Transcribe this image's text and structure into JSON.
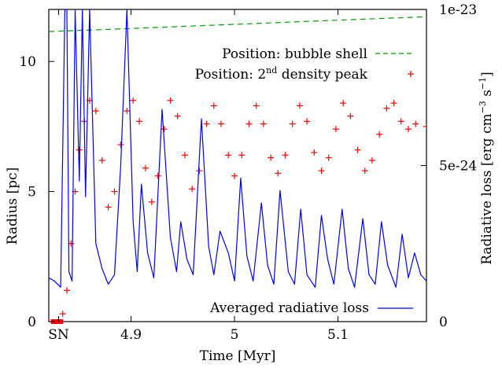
{
  "chart_data": {
    "type": "line",
    "xlabel": "Time [Myr]",
    "ylabel_left": "Radius [pc]",
    "ylabel_right": "Radiative loss [erg cm",
    "ylabel_right_exp1": "−3",
    "ylabel_right_mid": " s",
    "ylabel_right_exp2": "−1",
    "ylabel_right_end": "]",
    "xlim": [
      4.8205,
      5.1855
    ],
    "ylim_left": [
      0,
      12.0
    ],
    "ylim_right": [
      0,
      1e-23
    ],
    "x_ticks": [
      {
        "value": 4.83,
        "label": "SN"
      },
      {
        "value": 4.9,
        "label": "4.9"
      },
      {
        "value": 5.0,
        "label": "5"
      },
      {
        "value": 5.1,
        "label": "5.1"
      }
    ],
    "y_left_ticks": [
      {
        "value": 0,
        "label": "0"
      },
      {
        "value": 5,
        "label": "5"
      },
      {
        "value": 10,
        "label": "10"
      }
    ],
    "y_right_ticks": [
      {
        "value": 0,
        "label": "0"
      },
      {
        "value": 5e-24,
        "label": "5e-24"
      },
      {
        "value": 1e-23,
        "label": "1e-23"
      }
    ],
    "legend": {
      "placement": "right",
      "entries": [
        {
          "series": "bubble_shell",
          "label": "Position: bubble shell"
        },
        {
          "series": "density_peak",
          "label_pre": "Position: 2",
          "label_sup": "nd",
          "label_post": " density peak"
        },
        {
          "series": "radiative_loss",
          "label": "Averaged radiative loss"
        }
      ]
    },
    "series": [
      {
        "id": "bubble_shell",
        "name": "Position: bubble shell",
        "axis": "left",
        "style": "dashed",
        "color": "#00a000",
        "x": [
          4.8205,
          4.87,
          4.92,
          4.97,
          5.02,
          5.07,
          5.12,
          5.1855
        ],
        "y": [
          11.15,
          11.22,
          11.3,
          11.38,
          11.46,
          11.54,
          11.62,
          11.72
        ]
      },
      {
        "id": "density_peak",
        "name": "Position: 2nd density peak",
        "axis": "left",
        "style": "points",
        "marker": "+",
        "color": "#ff0000",
        "x": [
          4.8205,
          4.834,
          4.838,
          4.842,
          4.846,
          4.85,
          4.855,
          4.86,
          4.866,
          4.872,
          4.878,
          4.884,
          4.89,
          4.896,
          4.902,
          4.908,
          4.914,
          4.92,
          4.926,
          4.932,
          4.938,
          4.945,
          4.952,
          4.959,
          4.966,
          4.973,
          4.98,
          4.987,
          4.994,
          5.0,
          5.007,
          5.014,
          5.021,
          5.028,
          5.035,
          5.042,
          5.049,
          5.056,
          5.063,
          5.07,
          5.077,
          5.084,
          5.091,
          5.098,
          5.105,
          5.112,
          5.119,
          5.126,
          5.133,
          5.14,
          5.147,
          5.154,
          5.161,
          5.168,
          5.175,
          5.1855
        ],
        "y": [
          0,
          0.3,
          1.2,
          3.0,
          5.0,
          6.6,
          7.7,
          8.5,
          8.1,
          6.2,
          4.4,
          5.0,
          6.8,
          8.1,
          8.5,
          7.7,
          5.9,
          4.6,
          5.6,
          7.4,
          8.5,
          7.9,
          6.4,
          5.1,
          5.8,
          7.6,
          8.3,
          7.6,
          6.4,
          5.6,
          6.4,
          7.6,
          8.3,
          7.6,
          6.3,
          5.7,
          6.4,
          7.6,
          8.3,
          7.7,
          6.5,
          5.8,
          6.3,
          7.4,
          8.4,
          7.9,
          6.6,
          5.8,
          6.2,
          7.2,
          8.2,
          8.4,
          7.7,
          7.4,
          7.6,
          7.5
        ]
      },
      {
        "id": "radiative_loss",
        "name": "Averaged radiative loss",
        "axis": "right",
        "style": "solid",
        "color": "#0000ff",
        "x": [
          4.8205,
          4.826,
          4.832,
          4.836,
          4.838,
          4.84,
          4.843,
          4.846,
          4.85,
          4.853,
          4.856,
          4.86,
          4.866,
          4.872,
          4.878,
          4.884,
          4.89,
          4.896,
          4.902,
          4.906,
          4.91,
          4.916,
          4.922,
          4.93,
          4.938,
          4.944,
          4.948,
          4.954,
          4.96,
          4.968,
          4.975,
          4.98,
          4.986,
          4.994,
          5.0,
          5.006,
          5.012,
          5.018,
          5.026,
          5.032,
          5.038,
          5.044,
          5.052,
          5.058,
          5.064,
          5.07,
          5.078,
          5.084,
          5.09,
          5.096,
          5.104,
          5.11,
          5.116,
          5.124,
          5.13,
          5.136,
          5.142,
          5.148,
          5.156,
          5.162,
          5.168,
          5.174,
          5.18,
          5.1855
        ],
        "y": [
          1.4e-24,
          1.3e-24,
          1.1e-24,
          1e-23,
          1e-23,
          1.6e-24,
          1.3e-24,
          1e-23,
          4.5e-24,
          1e-23,
          4e-24,
          1e-23,
          2.5e-24,
          1.7e-24,
          1.2e-24,
          1.5e-24,
          5e-24,
          1e-23,
          3.2e-24,
          1.6e-24,
          4.4e-24,
          2.2e-24,
          1.4e-24,
          6.8e-24,
          2.7e-24,
          1.6e-24,
          3.2e-24,
          2e-24,
          1.5e-24,
          6.5e-24,
          2.4e-24,
          1.5e-24,
          2.9e-24,
          2.2e-24,
          1.3e-24,
          4.6e-24,
          2.1e-24,
          1.3e-24,
          3.8e-24,
          1.8e-24,
          1.2e-24,
          4.2e-24,
          1.6e-24,
          1.2e-24,
          3.6e-24,
          1.5e-24,
          1.1e-24,
          3.4e-24,
          2e-24,
          1.2e-24,
          3.6e-24,
          1.7e-24,
          1.1e-24,
          3.3e-24,
          1.5e-24,
          1.2e-24,
          3.2e-24,
          1.8e-24,
          1.1e-24,
          2.8e-24,
          1.4e-24,
          2.2e-24,
          1.5e-24,
          1.3e-24
        ]
      }
    ],
    "annotations": [
      {
        "type": "marker",
        "label": "SN",
        "x_range": [
          4.8225,
          4.8345
        ],
        "axis": "left",
        "y": 0,
        "color": "#ff0000"
      }
    ],
    "grid": false
  }
}
